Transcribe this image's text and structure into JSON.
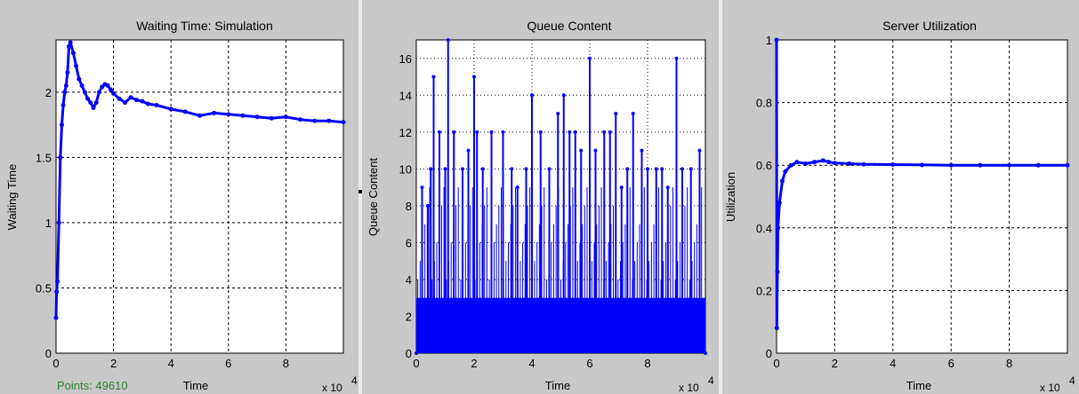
{
  "status": {
    "points_label": "Points: 49610"
  },
  "colors": {
    "series": "#0000ff",
    "plot_bg": "#ffffff",
    "frame_bg": "#c8c8c8",
    "status_text": "#2d7d2d"
  },
  "chart_data": [
    {
      "type": "line",
      "title": "Waiting Time: Simulation",
      "xlabel": "Time",
      "ylabel": "Waiting Time",
      "x_multiplier": "x 10",
      "x_exponent": "4",
      "xlim": [
        0,
        10
      ],
      "ylim": [
        0,
        2.4
      ],
      "xticks": [
        "0",
        "2",
        "4",
        "6",
        "8"
      ],
      "yticks": [
        "0",
        "0.5",
        "1",
        "1.5",
        "2"
      ],
      "grid": true,
      "series": [
        {
          "values": [
            [
              0,
              0.27
            ],
            [
              0.02,
              0.47
            ],
            [
              0.05,
              0.55
            ],
            [
              0.1,
              1.0
            ],
            [
              0.15,
              1.5
            ],
            [
              0.2,
              1.75
            ],
            [
              0.25,
              1.9
            ],
            [
              0.3,
              2.0
            ],
            [
              0.35,
              2.05
            ],
            [
              0.4,
              2.15
            ],
            [
              0.45,
              2.35
            ],
            [
              0.5,
              2.38
            ],
            [
              0.6,
              2.3
            ],
            [
              0.7,
              2.2
            ],
            [
              0.8,
              2.1
            ],
            [
              0.9,
              2.05
            ],
            [
              1.0,
              2.0
            ],
            [
              1.1,
              1.95
            ],
            [
              1.2,
              1.92
            ],
            [
              1.3,
              1.88
            ],
            [
              1.4,
              1.92
            ],
            [
              1.5,
              2.0
            ],
            [
              1.6,
              2.04
            ],
            [
              1.7,
              2.06
            ],
            [
              1.8,
              2.05
            ],
            [
              1.9,
              2.02
            ],
            [
              2.0,
              1.99
            ],
            [
              2.2,
              1.95
            ],
            [
              2.4,
              1.92
            ],
            [
              2.6,
              1.96
            ],
            [
              2.8,
              1.94
            ],
            [
              3.0,
              1.93
            ],
            [
              3.2,
              1.91
            ],
            [
              3.5,
              1.9
            ],
            [
              4.0,
              1.87
            ],
            [
              4.5,
              1.85
            ],
            [
              5.0,
              1.82
            ],
            [
              5.5,
              1.84
            ],
            [
              6.0,
              1.83
            ],
            [
              6.5,
              1.82
            ],
            [
              7.0,
              1.81
            ],
            [
              7.5,
              1.8
            ],
            [
              8.0,
              1.81
            ],
            [
              8.5,
              1.79
            ],
            [
              9.0,
              1.78
            ],
            [
              9.5,
              1.78
            ],
            [
              10.0,
              1.77
            ]
          ]
        }
      ]
    },
    {
      "type": "line",
      "title": "Queue Content",
      "xlabel": "Time",
      "ylabel": "Queue Content",
      "x_multiplier": "x 10",
      "x_exponent": "4",
      "xlim": [
        0,
        10
      ],
      "ylim": [
        0,
        17
      ],
      "xticks": [
        "0",
        "2",
        "4",
        "6",
        "8"
      ],
      "yticks": [
        "0",
        "2",
        "4",
        "6",
        "8",
        "10",
        "12",
        "14",
        "16"
      ],
      "grid": true,
      "series": [
        {
          "values": [
            [
              0,
              0
            ],
            [
              0.2,
              9
            ],
            [
              0.4,
              8
            ],
            [
              0.5,
              10
            ],
            [
              0.6,
              15
            ],
            [
              0.8,
              12
            ],
            [
              1.0,
              10
            ],
            [
              1.1,
              17
            ],
            [
              1.3,
              12
            ],
            [
              1.6,
              10
            ],
            [
              1.8,
              11
            ],
            [
              2.0,
              15
            ],
            [
              2.1,
              12
            ],
            [
              2.3,
              10
            ],
            [
              2.6,
              12
            ],
            [
              3.0,
              12
            ],
            [
              3.3,
              10
            ],
            [
              3.5,
              9
            ],
            [
              3.8,
              10
            ],
            [
              4.0,
              14
            ],
            [
              4.3,
              12
            ],
            [
              4.6,
              10
            ],
            [
              4.9,
              13
            ],
            [
              5.1,
              14
            ],
            [
              5.3,
              12
            ],
            [
              5.5,
              12
            ],
            [
              5.7,
              11
            ],
            [
              6.0,
              16
            ],
            [
              6.2,
              11
            ],
            [
              6.5,
              12
            ],
            [
              6.7,
              12
            ],
            [
              6.9,
              13
            ],
            [
              7.1,
              9
            ],
            [
              7.3,
              10
            ],
            [
              7.5,
              13
            ],
            [
              7.8,
              11
            ],
            [
              8.0,
              10
            ],
            [
              8.3,
              10
            ],
            [
              8.5,
              10
            ],
            [
              8.7,
              9
            ],
            [
              9.0,
              16
            ],
            [
              9.2,
              10
            ],
            [
              9.5,
              10
            ],
            [
              9.8,
              11
            ],
            [
              10.0,
              0
            ]
          ]
        }
      ]
    },
    {
      "type": "line",
      "title": "Server Utilization",
      "xlabel": "Time",
      "ylabel": "Utilization",
      "x_multiplier": "x 10",
      "x_exponent": "4",
      "xlim": [
        0,
        10
      ],
      "ylim": [
        0,
        1
      ],
      "xticks": [
        "0",
        "2",
        "4",
        "6",
        "8"
      ],
      "yticks": [
        "0",
        "0.2",
        "0.4",
        "0.6",
        "0.8",
        "1"
      ],
      "grid": true,
      "series": [
        {
          "values": [
            [
              0,
              1.0
            ],
            [
              0.01,
              0.08
            ],
            [
              0.03,
              0.26
            ],
            [
              0.05,
              0.4
            ],
            [
              0.1,
              0.48
            ],
            [
              0.2,
              0.55
            ],
            [
              0.3,
              0.58
            ],
            [
              0.5,
              0.6
            ],
            [
              0.7,
              0.61
            ],
            [
              1.0,
              0.605
            ],
            [
              1.3,
              0.61
            ],
            [
              1.6,
              0.615
            ],
            [
              1.8,
              0.61
            ],
            [
              2.0,
              0.607
            ],
            [
              2.5,
              0.605
            ],
            [
              3.0,
              0.603
            ],
            [
              4.0,
              0.602
            ],
            [
              5.0,
              0.601
            ],
            [
              6.0,
              0.6
            ],
            [
              7.0,
              0.6
            ],
            [
              8.0,
              0.6
            ],
            [
              9.0,
              0.6
            ],
            [
              10.0,
              0.6
            ]
          ]
        }
      ]
    }
  ]
}
